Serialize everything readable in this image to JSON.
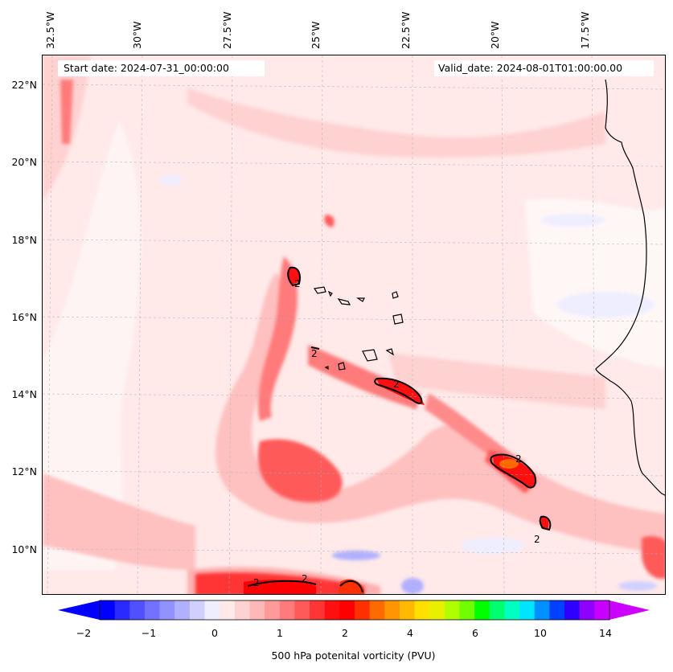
{
  "header": {
    "start_date": "Start date: 2024-07-31_00:00:00",
    "valid_date": "Valid_date: 2024-08-01T01:00:00.00"
  },
  "axes": {
    "lon_labels": [
      "32.5°W",
      "30°W",
      "27.5°W",
      "25°W",
      "22.5°W",
      "20°W",
      "17.5°W"
    ],
    "lat_labels": [
      "22°N",
      "20°N",
      "18°N",
      "16°N",
      "14°N",
      "12°N",
      "10°N"
    ]
  },
  "contour_label": "2",
  "colorbar": {
    "title": "500 hPa potenital vorticity (PVU)",
    "tick_labels": [
      "−2",
      "−1",
      "0",
      "1",
      "2",
      "4",
      "6",
      "10",
      "14"
    ],
    "colors": [
      "#0000ff",
      "#2a2aff",
      "#5050ff",
      "#7272ff",
      "#9292ff",
      "#b0b0ff",
      "#d0d0ff",
      "#eeeeff",
      "#ffe9e9",
      "#ffd2d2",
      "#ffb8b8",
      "#ff9a9a",
      "#ff7a7a",
      "#ff5a5a",
      "#ff3535",
      "#ff1010",
      "#ff0000",
      "#ff3000",
      "#ff6a00",
      "#ff9500",
      "#ffba00",
      "#ffe000",
      "#e8f000",
      "#b0ff00",
      "#70ff00",
      "#00ff00",
      "#00ff70",
      "#00ffc0",
      "#00e5ff",
      "#0090ff",
      "#0040ff",
      "#3000ff",
      "#9000ff",
      "#c800ff"
    ],
    "extend_min_color": "#0000ff",
    "extend_max_color": "#cc00ff"
  }
}
